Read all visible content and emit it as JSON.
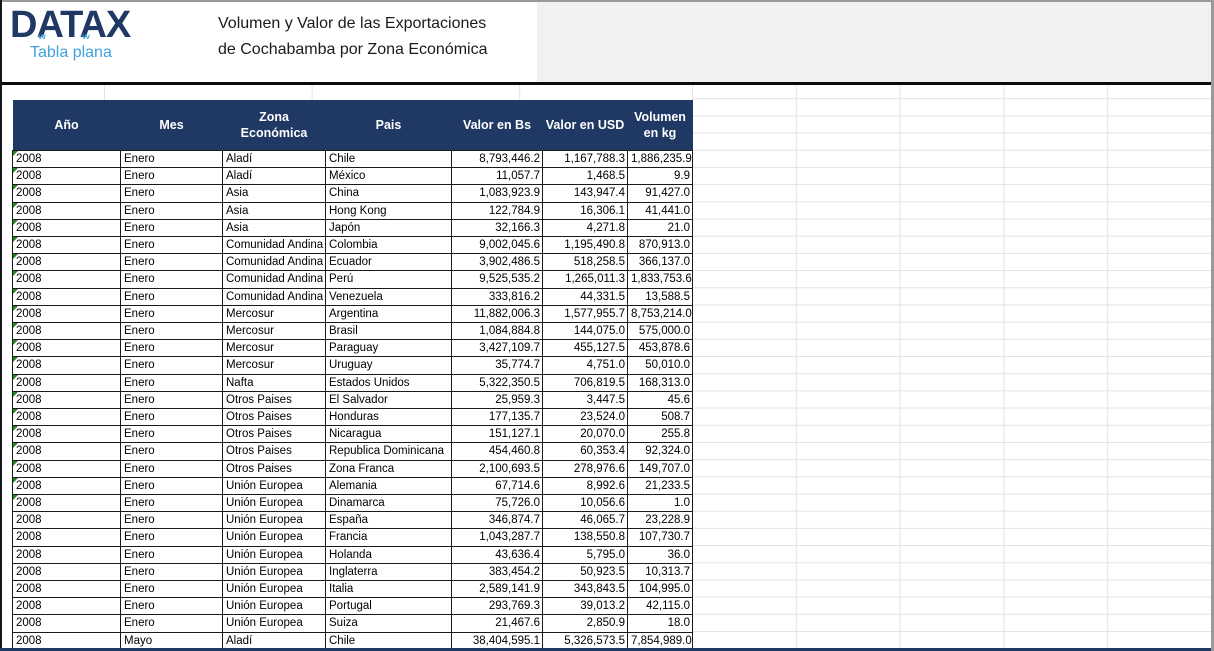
{
  "logo": {
    "brand": "DATAX",
    "subtitle": "Tabla plana"
  },
  "title": {
    "line1": "Volumen y Valor de las Exportaciones",
    "line2": "de Cochabamba por Zona Económica"
  },
  "colors": {
    "header_bg": "#1F3864",
    "logo_navy": "#1F3864",
    "logo_blue": "#3FA0DC",
    "band_gray": "#F1F1F1",
    "flag_green": "#1C8A1C"
  },
  "table": {
    "columns": [
      {
        "key": "ano",
        "label": "Año"
      },
      {
        "key": "mes",
        "label": "Mes"
      },
      {
        "key": "zona",
        "label": "Zona Económica"
      },
      {
        "key": "pais",
        "label": "Pais"
      },
      {
        "key": "bs",
        "label": "Valor en Bs"
      },
      {
        "key": "usd",
        "label": "Valor en USD"
      },
      {
        "key": "kg",
        "label": "Volumen en kg"
      }
    ],
    "rows": [
      {
        "ano": "2008",
        "mes": "Enero",
        "zona": "Aladí",
        "pais": "Chile",
        "bs": "8,793,446.2",
        "usd": "1,167,788.3",
        "kg": "1,886,235.9",
        "flag": true
      },
      {
        "ano": "2008",
        "mes": "Enero",
        "zona": "Aladí",
        "pais": "México",
        "bs": "11,057.7",
        "usd": "1,468.5",
        "kg": "9.9",
        "flag": true
      },
      {
        "ano": "2008",
        "mes": "Enero",
        "zona": "Asia",
        "pais": "China",
        "bs": "1,083,923.9",
        "usd": "143,947.4",
        "kg": "91,427.0",
        "flag": true
      },
      {
        "ano": "2008",
        "mes": "Enero",
        "zona": "Asia",
        "pais": "Hong Kong",
        "bs": "122,784.9",
        "usd": "16,306.1",
        "kg": "41,441.0",
        "flag": true
      },
      {
        "ano": "2008",
        "mes": "Enero",
        "zona": "Asia",
        "pais": "Japón",
        "bs": "32,166.3",
        "usd": "4,271.8",
        "kg": "21.0",
        "flag": true
      },
      {
        "ano": "2008",
        "mes": "Enero",
        "zona": "Comunidad Andina",
        "pais": "Colombia",
        "bs": "9,002,045.6",
        "usd": "1,195,490.8",
        "kg": "870,913.0",
        "flag": true
      },
      {
        "ano": "2008",
        "mes": "Enero",
        "zona": "Comunidad Andina",
        "pais": "Ecuador",
        "bs": "3,902,486.5",
        "usd": "518,258.5",
        "kg": "366,137.0",
        "flag": true
      },
      {
        "ano": "2008",
        "mes": "Enero",
        "zona": "Comunidad Andina",
        "pais": "Perú",
        "bs": "9,525,535.2",
        "usd": "1,265,011.3",
        "kg": "1,833,753.6",
        "flag": true
      },
      {
        "ano": "2008",
        "mes": "Enero",
        "zona": "Comunidad Andina",
        "pais": "Venezuela",
        "bs": "333,816.2",
        "usd": "44,331.5",
        "kg": "13,588.5",
        "flag": true
      },
      {
        "ano": "2008",
        "mes": "Enero",
        "zona": "Mercosur",
        "pais": "Argentina",
        "bs": "11,882,006.3",
        "usd": "1,577,955.7",
        "kg": "8,753,214.0",
        "flag": true
      },
      {
        "ano": "2008",
        "mes": "Enero",
        "zona": "Mercosur",
        "pais": "Brasil",
        "bs": "1,084,884.8",
        "usd": "144,075.0",
        "kg": "575,000.0",
        "flag": true
      },
      {
        "ano": "2008",
        "mes": "Enero",
        "zona": "Mercosur",
        "pais": "Paraguay",
        "bs": "3,427,109.7",
        "usd": "455,127.5",
        "kg": "453,878.6",
        "flag": true
      },
      {
        "ano": "2008",
        "mes": "Enero",
        "zona": "Mercosur",
        "pais": "Uruguay",
        "bs": "35,774.7",
        "usd": "4,751.0",
        "kg": "50,010.0",
        "flag": true
      },
      {
        "ano": "2008",
        "mes": "Enero",
        "zona": "Nafta",
        "pais": "Estados Unidos",
        "bs": "5,322,350.5",
        "usd": "706,819.5",
        "kg": "168,313.0",
        "flag": true
      },
      {
        "ano": "2008",
        "mes": "Enero",
        "zona": "Otros Paises",
        "pais": "El Salvador",
        "bs": "25,959.3",
        "usd": "3,447.5",
        "kg": "45.6",
        "flag": true
      },
      {
        "ano": "2008",
        "mes": "Enero",
        "zona": "Otros Paises",
        "pais": "Honduras",
        "bs": "177,135.7",
        "usd": "23,524.0",
        "kg": "508.7",
        "flag": true
      },
      {
        "ano": "2008",
        "mes": "Enero",
        "zona": "Otros Paises",
        "pais": "Nicaragua",
        "bs": "151,127.1",
        "usd": "20,070.0",
        "kg": "255.8",
        "flag": true
      },
      {
        "ano": "2008",
        "mes": "Enero",
        "zona": "Otros Paises",
        "pais": "Republica Dominicana",
        "bs": "454,460.8",
        "usd": "60,353.4",
        "kg": "92,324.0",
        "flag": true
      },
      {
        "ano": "2008",
        "mes": "Enero",
        "zona": "Otros Paises",
        "pais": "Zona Franca",
        "bs": "2,100,693.5",
        "usd": "278,976.6",
        "kg": "149,707.0",
        "flag": true
      },
      {
        "ano": "2008",
        "mes": "Enero",
        "zona": "Unión Europea",
        "pais": "Alemania",
        "bs": "67,714.6",
        "usd": "8,992.6",
        "kg": "21,233.5",
        "flag": true
      },
      {
        "ano": "2008",
        "mes": "Enero",
        "zona": "Unión Europea",
        "pais": "Dinamarca",
        "bs": "75,726.0",
        "usd": "10,056.6",
        "kg": "1.0",
        "flag": true
      },
      {
        "ano": "2008",
        "mes": "Enero",
        "zona": "Unión Europea",
        "pais": "España",
        "bs": "346,874.7",
        "usd": "46,065.7",
        "kg": "23,228.9",
        "flag": false
      },
      {
        "ano": "2008",
        "mes": "Enero",
        "zona": "Unión Europea",
        "pais": "Francia",
        "bs": "1,043,287.7",
        "usd": "138,550.8",
        "kg": "107,730.7",
        "flag": false
      },
      {
        "ano": "2008",
        "mes": "Enero",
        "zona": "Unión Europea",
        "pais": "Holanda",
        "bs": "43,636.4",
        "usd": "5,795.0",
        "kg": "36.0",
        "flag": false
      },
      {
        "ano": "2008",
        "mes": "Enero",
        "zona": "Unión Europea",
        "pais": "Inglaterra",
        "bs": "383,454.2",
        "usd": "50,923.5",
        "kg": "10,313.7",
        "flag": false
      },
      {
        "ano": "2008",
        "mes": "Enero",
        "zona": "Unión Europea",
        "pais": "Italia",
        "bs": "2,589,141.9",
        "usd": "343,843.5",
        "kg": "104,995.0",
        "flag": false
      },
      {
        "ano": "2008",
        "mes": "Enero",
        "zona": "Unión Europea",
        "pais": "Portugal",
        "bs": "293,769.3",
        "usd": "39,013.2",
        "kg": "42,115.0",
        "flag": false
      },
      {
        "ano": "2008",
        "mes": "Enero",
        "zona": "Unión Europea",
        "pais": "Suiza",
        "bs": "21,467.6",
        "usd": "2,850.9",
        "kg": "18.0",
        "flag": false
      },
      {
        "ano": "2008",
        "mes": "Mayo",
        "zona": "Aladí",
        "pais": "Chile",
        "bs": "38,404,595.1",
        "usd": "5,326,573.5",
        "kg": "7,854,989.0",
        "flag": false
      }
    ]
  }
}
